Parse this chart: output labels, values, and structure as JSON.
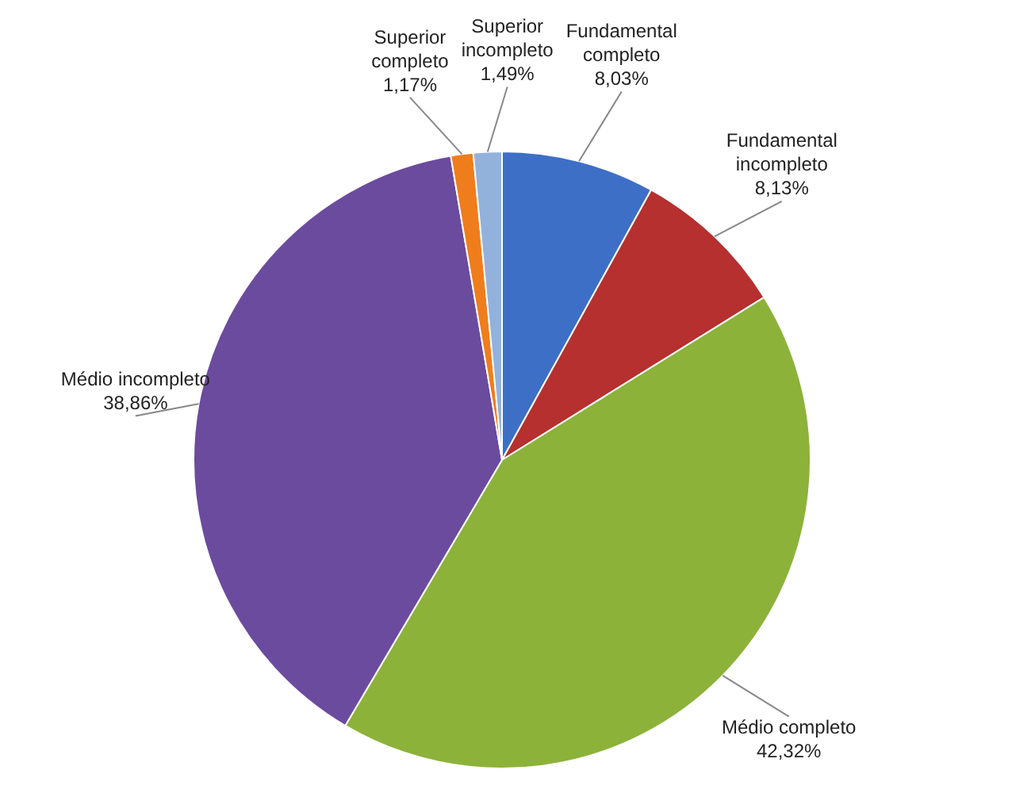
{
  "chart_data": {
    "type": "pie",
    "categories": [
      "Fundamental completo",
      "Fundamental incompleto",
      "Médio completo",
      "Médio incompleto",
      "Superior completo",
      "Superior incompleto"
    ],
    "values": [
      8.03,
      8.13,
      42.32,
      38.86,
      1.17,
      1.49
    ],
    "value_labels": [
      "8,03%",
      "8,13%",
      "42,32%",
      "38,86%",
      "1,17%",
      "1,49%"
    ],
    "colors": [
      "#3d6fc6",
      "#b5302e",
      "#8cb23a",
      "#6b4b9e",
      "#f07d1c",
      "#92b2dc"
    ],
    "legend": false
  }
}
